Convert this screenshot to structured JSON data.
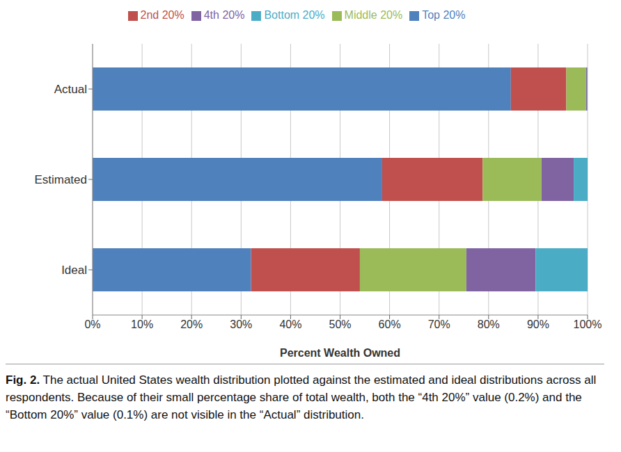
{
  "chart_data": {
    "type": "bar",
    "orientation": "horizontal",
    "stacked": true,
    "grid": true,
    "legend": "top",
    "xlabel": "Percent Wealth Owned",
    "categories": [
      "Actual",
      "Estimated",
      "Ideal"
    ],
    "series": [
      {
        "name": "Top 20%",
        "color": "#4f81bd",
        "values": [
          84.5,
          58.5,
          32
        ]
      },
      {
        "name": "2nd 20%",
        "color": "#c0504d",
        "values": [
          11.2,
          20.3,
          22
        ]
      },
      {
        "name": "Middle 20%",
        "color": "#9bbb59",
        "values": [
          4.0,
          11.9,
          21.5
        ]
      },
      {
        "name": "4th 20%",
        "color": "#8064a2",
        "values": [
          0.2,
          6.5,
          14
        ]
      },
      {
        "name": "Bottom 20%",
        "color": "#4bacc6",
        "values": [
          0.1,
          2.8,
          10.5
        ]
      }
    ],
    "xlim": [
      0,
      100
    ],
    "xticks": [
      {
        "value": 0,
        "label": "0%"
      },
      {
        "value": 10,
        "label": "10%"
      },
      {
        "value": 20,
        "label": "20%"
      },
      {
        "value": 30,
        "label": "30%"
      },
      {
        "value": 40,
        "label": "40%"
      },
      {
        "value": 50,
        "label": "50%"
      },
      {
        "value": 60,
        "label": "60%"
      },
      {
        "value": 70,
        "label": "70%"
      },
      {
        "value": 80,
        "label": "80%"
      },
      {
        "value": 90,
        "label": "90%"
      },
      {
        "value": 100,
        "label": "100%"
      }
    ]
  },
  "caption": {
    "label": "Fig. 2.",
    "text": "The actual United States wealth distribution plotted against the estimated and ideal distributions across all respondents. Because of their small percentage share of total wealth, both the “4th 20%” value (0.2%) and the “Bottom 20%” value (0.1%) are not visible in the “Actual” distribution."
  }
}
